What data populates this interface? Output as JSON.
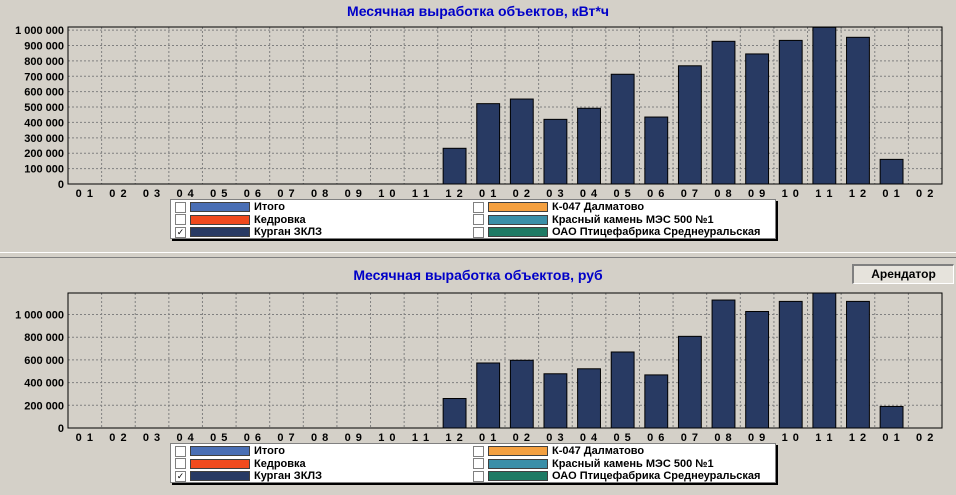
{
  "arendator_label": "Арендатор",
  "legend": [
    {
      "label": "Итого",
      "color": "#4a6fb5",
      "checked": false
    },
    {
      "label": "Кедровка",
      "color": "#f04a1e",
      "checked": false
    },
    {
      "label": "Курган ЗКЛЗ",
      "color": "#283a63",
      "checked": true
    },
    {
      "label": "К-047 Далматово",
      "color": "#f4a040",
      "checked": false
    },
    {
      "label": "Красный камень МЭС 500 №1",
      "color": "#3a8fa8",
      "checked": false
    },
    {
      "label": "ОАО  Птицефабрика Среднеуральская",
      "color": "#1e7a64",
      "checked": false
    }
  ],
  "chart_data": [
    {
      "type": "bar",
      "title": "Месячная выработка объектов, кВт*ч",
      "categories": [
        "01",
        "02",
        "03",
        "04",
        "05",
        "06",
        "07",
        "08",
        "09",
        "10",
        "11",
        "12",
        "01",
        "02",
        "03",
        "04",
        "05",
        "06",
        "07",
        "08",
        "09",
        "10",
        "11",
        "12",
        "01",
        "02"
      ],
      "series": [
        {
          "name": "Курган ЗКЛЗ",
          "values": [
            0,
            0,
            0,
            0,
            0,
            0,
            0,
            0,
            0,
            0,
            0,
            232000,
            522000,
            552000,
            420000,
            492000,
            713000,
            435000,
            768000,
            927000,
            845000,
            933000,
            1018000,
            953000,
            160000,
            0
          ]
        }
      ],
      "yticks": [
        "0",
        "100 000",
        "200 000",
        "300 000",
        "400 000",
        "500 000",
        "600 000",
        "700 000",
        "800 000",
        "900 000",
        "1 000 000"
      ],
      "ylim": [
        0,
        1020000
      ],
      "ystep": 100000,
      "grid": true,
      "legend_position": "bottom"
    },
    {
      "type": "bar",
      "title": "Месячная выработка объектов, руб",
      "categories": [
        "01",
        "02",
        "03",
        "04",
        "05",
        "06",
        "07",
        "08",
        "09",
        "10",
        "11",
        "12",
        "01",
        "02",
        "03",
        "04",
        "05",
        "06",
        "07",
        "08",
        "09",
        "10",
        "11",
        "12",
        "01",
        "02"
      ],
      "series": [
        {
          "name": "Курган ЗКЛЗ",
          "values": [
            0,
            0,
            0,
            0,
            0,
            0,
            0,
            0,
            0,
            0,
            0,
            260000,
            573000,
            597000,
            478000,
            522000,
            670000,
            468000,
            808000,
            1128000,
            1027000,
            1116000,
            1190000,
            1116000,
            190000,
            0
          ]
        }
      ],
      "yticks": [
        "0",
        "200 000",
        "400 000",
        "600 000",
        "800 000",
        "1 000 000"
      ],
      "ylim": [
        0,
        1190000
      ],
      "ystep": 200000,
      "grid": true,
      "legend_position": "bottom"
    }
  ]
}
